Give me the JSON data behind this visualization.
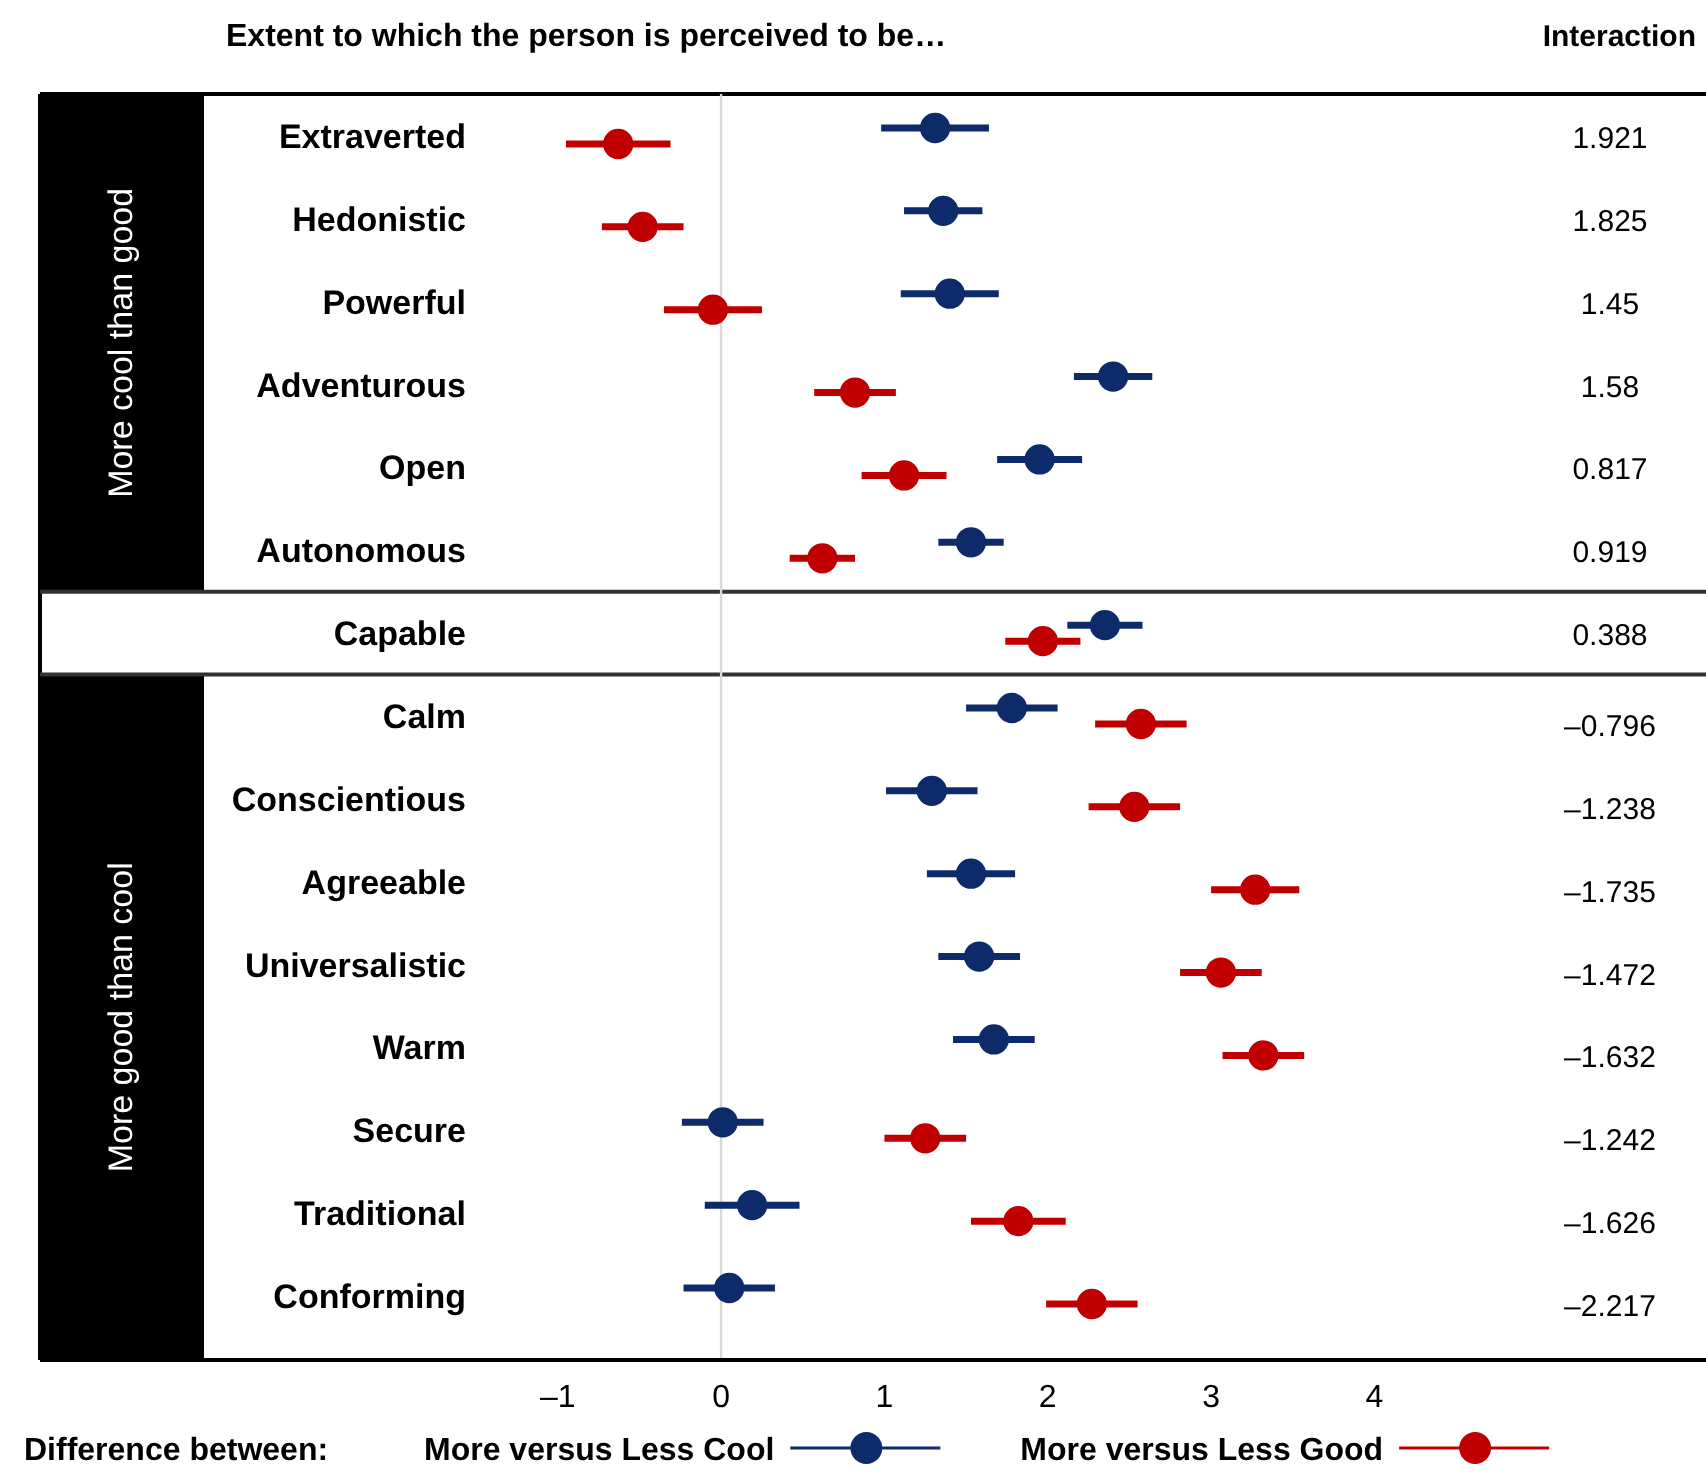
{
  "chart_data": {
    "type": "scatter",
    "orientation": "horizontal",
    "title": "Extent to which the person is perceived to be…",
    "legend_title": "Difference between:",
    "categories": [
      "Extraverted",
      "Hedonistic",
      "Powerful",
      "Adventurous",
      "Open",
      "Autonomous",
      "Capable",
      "Calm",
      "Conscientious",
      "Agreeable",
      "Universalistic",
      "Warm",
      "Secure",
      "Traditional",
      "Conforming"
    ],
    "series": [
      {
        "name": "More versus Less Cool",
        "color": "#0d2a6b",
        "values": [
          1.31,
          1.36,
          1.4,
          2.4,
          1.95,
          1.53,
          2.35,
          1.78,
          1.29,
          1.53,
          1.58,
          1.67,
          0.01,
          0.19,
          0.05
        ],
        "errors": [
          0.33,
          0.24,
          0.3,
          0.24,
          0.26,
          0.2,
          0.23,
          0.28,
          0.28,
          0.27,
          0.25,
          0.25,
          0.25,
          0.29,
          0.28
        ]
      },
      {
        "name": "More versus Less Good",
        "color": "#c00000",
        "values": [
          -0.63,
          -0.48,
          -0.05,
          0.82,
          1.12,
          0.62,
          1.97,
          2.57,
          2.53,
          3.27,
          3.06,
          3.32,
          1.25,
          1.82,
          2.27
        ],
        "errors": [
          0.32,
          0.25,
          0.3,
          0.25,
          0.26,
          0.2,
          0.23,
          0.28,
          0.28,
          0.27,
          0.25,
          0.25,
          0.25,
          0.29,
          0.28
        ]
      }
    ],
    "xlim": [
      -4.17,
      6.03
    ],
    "xticks": [
      {
        "value": -1,
        "label": "–1"
      },
      0,
      1,
      2,
      3,
      4
    ],
    "ref_lines": [
      {
        "axis": "x",
        "value": 0,
        "color": "#d9d9d9"
      }
    ],
    "marker": "circle",
    "legend": "bottom",
    "annotations": [
      "Interaction",
      "1.921",
      "1.825",
      "1.45",
      "1.58",
      "0.817",
      "0.919",
      "0.388",
      "–0.796",
      "–1.238",
      "–1.735",
      "–1.472",
      "–1.632",
      "–1.242",
      "–1.626",
      "–2.217",
      "More cool than good",
      "More good than cool"
    ]
  }
}
